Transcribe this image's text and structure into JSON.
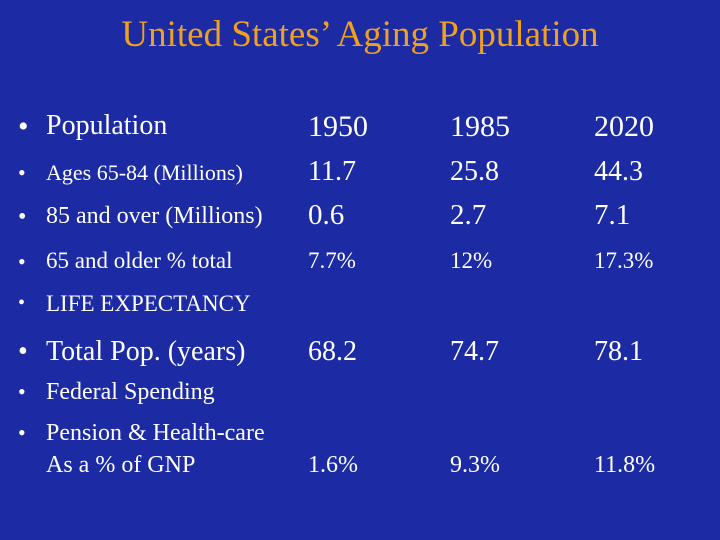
{
  "title": "United States’ Aging Population",
  "bullet_char": "•",
  "header": {
    "label": "Population",
    "years": [
      "1950",
      "1985",
      "2020"
    ]
  },
  "rows": [
    {
      "label": "Ages 65-84 (Millions)",
      "values": [
        "11.7",
        "25.8",
        "44.3"
      ]
    },
    {
      "label": "85 and over (Millions)",
      "values": [
        "0.6",
        "2.7",
        "7.1"
      ]
    },
    {
      "label": "65 and older % total",
      "values": [
        "7.7%",
        "12%",
        "17.3%"
      ]
    }
  ],
  "life_expectancy": {
    "label": "LIFE EXPECTANCY",
    "row": {
      "label": "Total Pop. (years)",
      "values": [
        "68.2",
        "74.7",
        "78.1"
      ]
    }
  },
  "federal_spending": {
    "label": "Federal Spending",
    "line1": "Pension & Health-care",
    "line2": "As a % of GNP",
    "values": [
      "1.6%",
      "9.3%",
      "11.8%"
    ]
  },
  "colors": {
    "background": "#1c2ba3",
    "title": "#f0a020",
    "text": "#ffffff"
  }
}
